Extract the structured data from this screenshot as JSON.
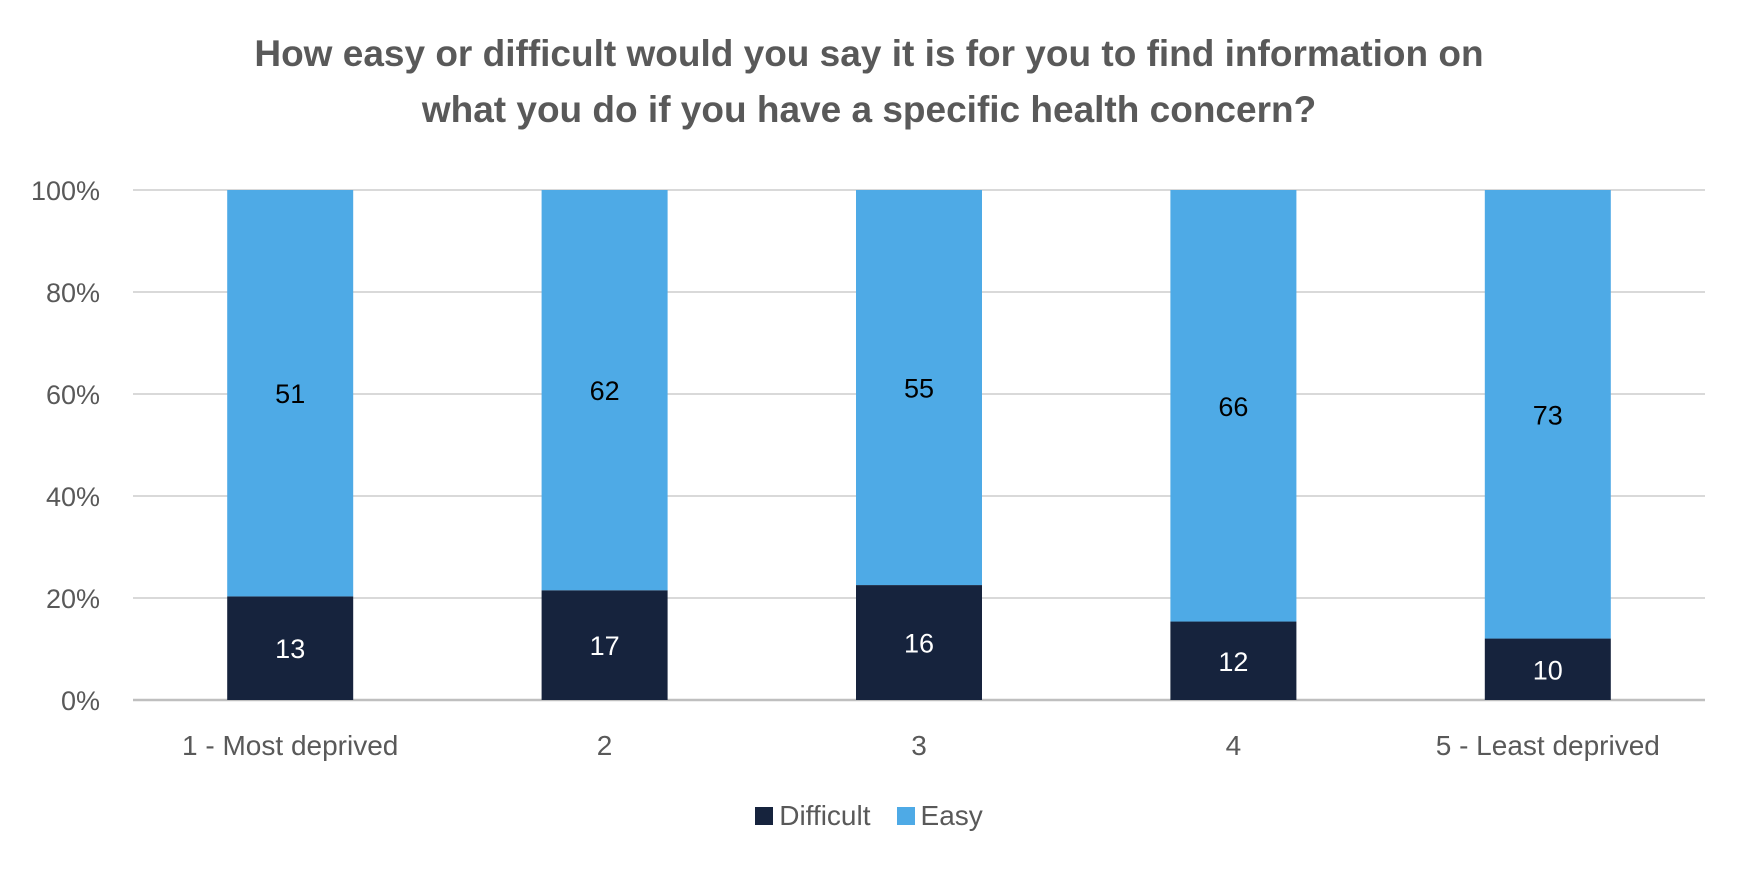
{
  "chart_data": {
    "type": "bar",
    "stacked": true,
    "normalized": true,
    "title": [
      "How easy or difficult would you say it is for you to find information on",
      "what you do if you have a specific health concern?"
    ],
    "categories": [
      "1 - Most deprived",
      "2",
      "3",
      "4",
      "5 - Least deprived"
    ],
    "series": [
      {
        "name": "Difficult",
        "values": [
          13,
          17,
          16,
          12,
          10
        ],
        "color": "#16233d",
        "label_color": "#ffffff"
      },
      {
        "name": "Easy",
        "values": [
          51,
          62,
          55,
          66,
          73
        ],
        "color": "#4eaae6",
        "label_color": "#000000"
      }
    ],
    "y_ticks": [
      "0%",
      "20%",
      "40%",
      "60%",
      "80%",
      "100%"
    ],
    "ylim": [
      0,
      100
    ],
    "grid": true,
    "legend_position": "bottom"
  }
}
